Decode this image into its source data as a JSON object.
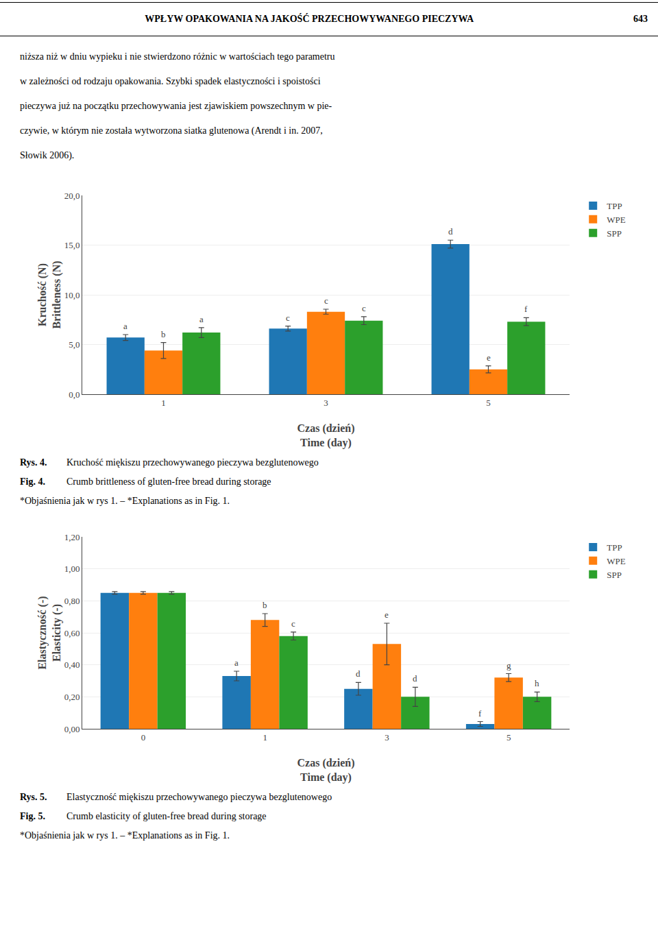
{
  "page_title": "WPŁYW OPAKOWANIA NA JAKOŚĆ PRZECHOWYWANEGO PIECZYWA",
  "page_number": "643",
  "body_text": [
    "niższa niż w dniu wypieku i nie stwierdzono różnic w wartościach tego parametru",
    "w zależności od rodzaju opakowania. Szybki spadek elastyczności i spoistości",
    "pieczywa już na początku przechowywania jest zjawiskiem powszechnym w pie-",
    "czywie, w którym nie została wytworzona siatka glutenowa (Arendt i in. 2007,",
    "Słowik 2006)."
  ],
  "chart_data": [
    {
      "type": "bar",
      "categories": [
        "1",
        "3",
        "5"
      ],
      "series": [
        {
          "name": "TPP",
          "values": [
            5.7,
            6.6,
            15.1
          ],
          "errors": [
            0.3,
            0.25,
            0.4
          ],
          "letters": [
            "a",
            "c",
            "d"
          ]
        },
        {
          "name": "WPE",
          "values": [
            4.4,
            8.3,
            2.5
          ],
          "errors": [
            0.8,
            0.25,
            0.35
          ],
          "letters": [
            "b",
            "c",
            "e"
          ]
        },
        {
          "name": "SPP",
          "values": [
            6.2,
            7.4,
            7.3
          ],
          "errors": [
            0.5,
            0.4,
            0.4
          ],
          "letters": [
            "a",
            "c",
            "f"
          ]
        }
      ],
      "xlabel": [
        "Czas (dzień)",
        "Time (day)"
      ],
      "ylabel": [
        "Kruchość (N)",
        "Brittleness (N)"
      ],
      "ylim": [
        0,
        20
      ],
      "yticks": [
        {
          "value": 0.0,
          "label": "0,0"
        },
        {
          "value": 5.0,
          "label": "5,0"
        },
        {
          "value": 10.0,
          "label": "10,0"
        },
        {
          "value": 15.0,
          "label": "15,0"
        },
        {
          "value": 20.0,
          "label": "20,0"
        }
      ],
      "grid": true,
      "legend": "upper right",
      "caption": [
        {
          "bold": "Rys. 4.",
          "text": "Kruchość miękiszu przechowywanego pieczywa bezglutenowego"
        },
        {
          "bold": "Fig. 4.",
          "text": "Crumb brittleness of gluten-free bread during storage"
        },
        {
          "text": "*Objaśnienia jak w rys 1. – *Explanations as in Fig. 1."
        }
      ]
    },
    {
      "type": "bar",
      "categories": [
        "0",
        "1",
        "3",
        "5"
      ],
      "series": [
        {
          "name": "TPP",
          "values": [
            0.85,
            0.33,
            0.25,
            0.03
          ],
          "errors": [
            0.008,
            0.03,
            0.04,
            0.015
          ],
          "letters": [
            null,
            "a",
            "d",
            "f"
          ]
        },
        {
          "name": "WPE",
          "values": [
            0.85,
            0.68,
            0.53,
            0.32
          ],
          "errors": [
            0.008,
            0.04,
            0.13,
            0.025
          ],
          "letters": [
            null,
            "b",
            "e",
            "g"
          ]
        },
        {
          "name": "SPP",
          "values": [
            0.85,
            0.58,
            0.2,
            0.2
          ],
          "errors": [
            0.008,
            0.025,
            0.06,
            0.03
          ],
          "letters": [
            null,
            "c",
            "d",
            "h"
          ]
        }
      ],
      "xlabel": [
        "Czas (dzień)",
        "Time (day)"
      ],
      "ylabel": [
        "Elastyczność (-)",
        "Elasticity (-)"
      ],
      "ylim": [
        0,
        1.2
      ],
      "yticks": [
        {
          "value": 0.0,
          "label": "0,00"
        },
        {
          "value": 0.2,
          "label": "0,20"
        },
        {
          "value": 0.4,
          "label": "0,40"
        },
        {
          "value": 0.6,
          "label": "0,60"
        },
        {
          "value": 0.8,
          "label": "0,80"
        },
        {
          "value": 1.0,
          "label": "1,00"
        },
        {
          "value": 1.2,
          "label": "1,20"
        }
      ],
      "grid": true,
      "legend": "upper right",
      "caption": [
        {
          "bold": "Rys. 5.",
          "text": "Elastyczność miękiszu przechowywanego pieczywa bezglutenowego"
        },
        {
          "bold": "Fig. 5.",
          "text": "Crumb elasticity of gluten-free bread during storage"
        },
        {
          "text": "*Objaśnienia jak w rys 1. – *Explanations as in Fig. 1."
        }
      ]
    }
  ]
}
